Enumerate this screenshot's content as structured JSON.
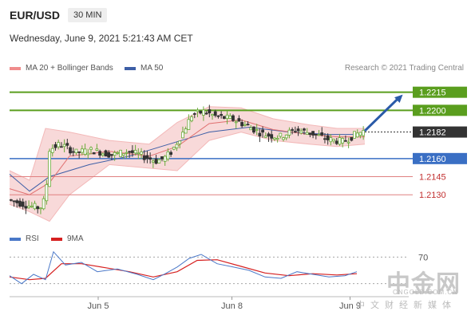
{
  "header": {
    "symbol": "EUR/USD",
    "timeframe": "30 MIN"
  },
  "date_text": "Wednesday, June 9, 2021 5:21:43 AM CET",
  "legend_main": [
    {
      "label": "MA 20 + Bollinger Bands",
      "color": "#f08c8c"
    },
    {
      "label": "MA 50",
      "color": "#3d5ea6"
    }
  ],
  "legend_rsi": [
    {
      "label": "RSI",
      "color": "#4a78c8"
    },
    {
      "label": "9MA",
      "color": "#d62020"
    }
  ],
  "credit": "Research © 2021 Trading Central",
  "watermark": {
    "brand": "中金网",
    "domain": "CNGOLD.COM.CN",
    "tagline": "中文财经新媒体"
  },
  "colors": {
    "resistance": "#5a9e1e",
    "support_pivot": "#3a6fc4",
    "support": "#e08080",
    "arrow": "#2a5aa8",
    "candle_up": "#6aaa3a",
    "candle_down": "#333333",
    "band_fill": "#f7d2d2"
  },
  "chart_data": [
    {
      "type": "candlestick",
      "x_ticks": [
        "Jun 5",
        "Jun 8",
        "Jun 9"
      ],
      "y_range": [
        1.2105,
        1.2228
      ],
      "levels": [
        {
          "value": "1.2215",
          "kind": "resistance"
        },
        {
          "value": "1.2200",
          "kind": "resistance"
        },
        {
          "value": "1.2182",
          "kind": "current"
        },
        {
          "value": "1.2160",
          "kind": "pivot"
        },
        {
          "value": "1.2145",
          "kind": "support"
        },
        {
          "value": "1.2130",
          "kind": "support"
        }
      ],
      "price_path": [
        [
          0,
          1.2126
        ],
        [
          0.05,
          1.2121
        ],
        [
          0.08,
          1.2119
        ],
        [
          0.095,
          1.2128
        ],
        [
          0.1,
          1.2167
        ],
        [
          0.13,
          1.2172
        ],
        [
          0.17,
          1.2165
        ],
        [
          0.21,
          1.2167
        ],
        [
          0.26,
          1.2163
        ],
        [
          0.3,
          1.2166
        ],
        [
          0.33,
          1.2163
        ],
        [
          0.37,
          1.2158
        ],
        [
          0.39,
          1.216
        ],
        [
          0.41,
          1.2166
        ],
        [
          0.44,
          1.2183
        ],
        [
          0.46,
          1.2196
        ],
        [
          0.49,
          1.2199
        ],
        [
          0.52,
          1.2195
        ],
        [
          0.56,
          1.2193
        ],
        [
          0.6,
          1.2187
        ],
        [
          0.64,
          1.218
        ],
        [
          0.68,
          1.2178
        ],
        [
          0.72,
          1.2184
        ],
        [
          0.76,
          1.2181
        ],
        [
          0.8,
          1.2176
        ],
        [
          0.84,
          1.2174
        ],
        [
          0.87,
          1.218
        ],
        [
          0.89,
          1.2183
        ]
      ],
      "ma50_path": [
        [
          0,
          1.2147
        ],
        [
          0.05,
          1.2133
        ],
        [
          0.1,
          1.2145
        ],
        [
          0.2,
          1.2155
        ],
        [
          0.3,
          1.2162
        ],
        [
          0.4,
          1.2172
        ],
        [
          0.5,
          1.2182
        ],
        [
          0.6,
          1.2186
        ],
        [
          0.7,
          1.2182
        ],
        [
          0.8,
          1.218
        ],
        [
          0.89,
          1.218
        ]
      ],
      "ma20_path": [
        [
          0,
          1.2135
        ],
        [
          0.05,
          1.213
        ],
        [
          0.1,
          1.214
        ],
        [
          0.15,
          1.2162
        ],
        [
          0.25,
          1.2166
        ],
        [
          0.35,
          1.2162
        ],
        [
          0.42,
          1.217
        ],
        [
          0.5,
          1.2189
        ],
        [
          0.58,
          1.2192
        ],
        [
          0.66,
          1.2184
        ],
        [
          0.75,
          1.218
        ],
        [
          0.82,
          1.2178
        ],
        [
          0.89,
          1.2178
        ]
      ],
      "bb_upper_path": [
        [
          0,
          1.215
        ],
        [
          0.05,
          1.2142
        ],
        [
          0.09,
          1.2185
        ],
        [
          0.15,
          1.2182
        ],
        [
          0.25,
          1.2175
        ],
        [
          0.35,
          1.2172
        ],
        [
          0.42,
          1.219
        ],
        [
          0.5,
          1.2203
        ],
        [
          0.58,
          1.2202
        ],
        [
          0.66,
          1.2193
        ],
        [
          0.75,
          1.2188
        ],
        [
          0.82,
          1.2185
        ],
        [
          0.89,
          1.2185
        ]
      ],
      "bb_lower_path": [
        [
          0,
          1.2122
        ],
        [
          0.05,
          1.2116
        ],
        [
          0.1,
          1.2108
        ],
        [
          0.15,
          1.213
        ],
        [
          0.25,
          1.2155
        ],
        [
          0.35,
          1.2152
        ],
        [
          0.42,
          1.215
        ],
        [
          0.5,
          1.2175
        ],
        [
          0.58,
          1.2182
        ],
        [
          0.66,
          1.2175
        ],
        [
          0.75,
          1.2172
        ],
        [
          0.82,
          1.217
        ],
        [
          0.89,
          1.2172
        ]
      ],
      "projection": {
        "from": [
          0.89,
          1.2183
        ],
        "to": [
          0.985,
          1.2213
        ]
      }
    },
    {
      "type": "line",
      "title": "RSI",
      "y_ticks": [
        "70"
      ],
      "y_range": [
        20,
        80
      ],
      "series": [
        {
          "name": "RSI",
          "values": [
            [
              0,
              42
            ],
            [
              0.03,
              30
            ],
            [
              0.06,
              44
            ],
            [
              0.09,
              36
            ],
            [
              0.11,
              78
            ],
            [
              0.14,
              58
            ],
            [
              0.18,
              62
            ],
            [
              0.22,
              48
            ],
            [
              0.27,
              52
            ],
            [
              0.32,
              44
            ],
            [
              0.36,
              36
            ],
            [
              0.39,
              45
            ],
            [
              0.42,
              55
            ],
            [
              0.45,
              68
            ],
            [
              0.48,
              74
            ],
            [
              0.52,
              60
            ],
            [
              0.56,
              55
            ],
            [
              0.6,
              50
            ],
            [
              0.64,
              40
            ],
            [
              0.68,
              38
            ],
            [
              0.72,
              48
            ],
            [
              0.76,
              44
            ],
            [
              0.8,
              40
            ],
            [
              0.84,
              42
            ],
            [
              0.87,
              48
            ]
          ]
        },
        {
          "name": "9MA",
          "values": [
            [
              0,
              40
            ],
            [
              0.05,
              36
            ],
            [
              0.09,
              38
            ],
            [
              0.13,
              60
            ],
            [
              0.18,
              60
            ],
            [
              0.24,
              54
            ],
            [
              0.3,
              48
            ],
            [
              0.36,
              40
            ],
            [
              0.42,
              48
            ],
            [
              0.47,
              65
            ],
            [
              0.52,
              66
            ],
            [
              0.58,
              56
            ],
            [
              0.64,
              46
            ],
            [
              0.7,
              42
            ],
            [
              0.76,
              45
            ],
            [
              0.82,
              43
            ],
            [
              0.87,
              45
            ]
          ]
        }
      ]
    }
  ]
}
